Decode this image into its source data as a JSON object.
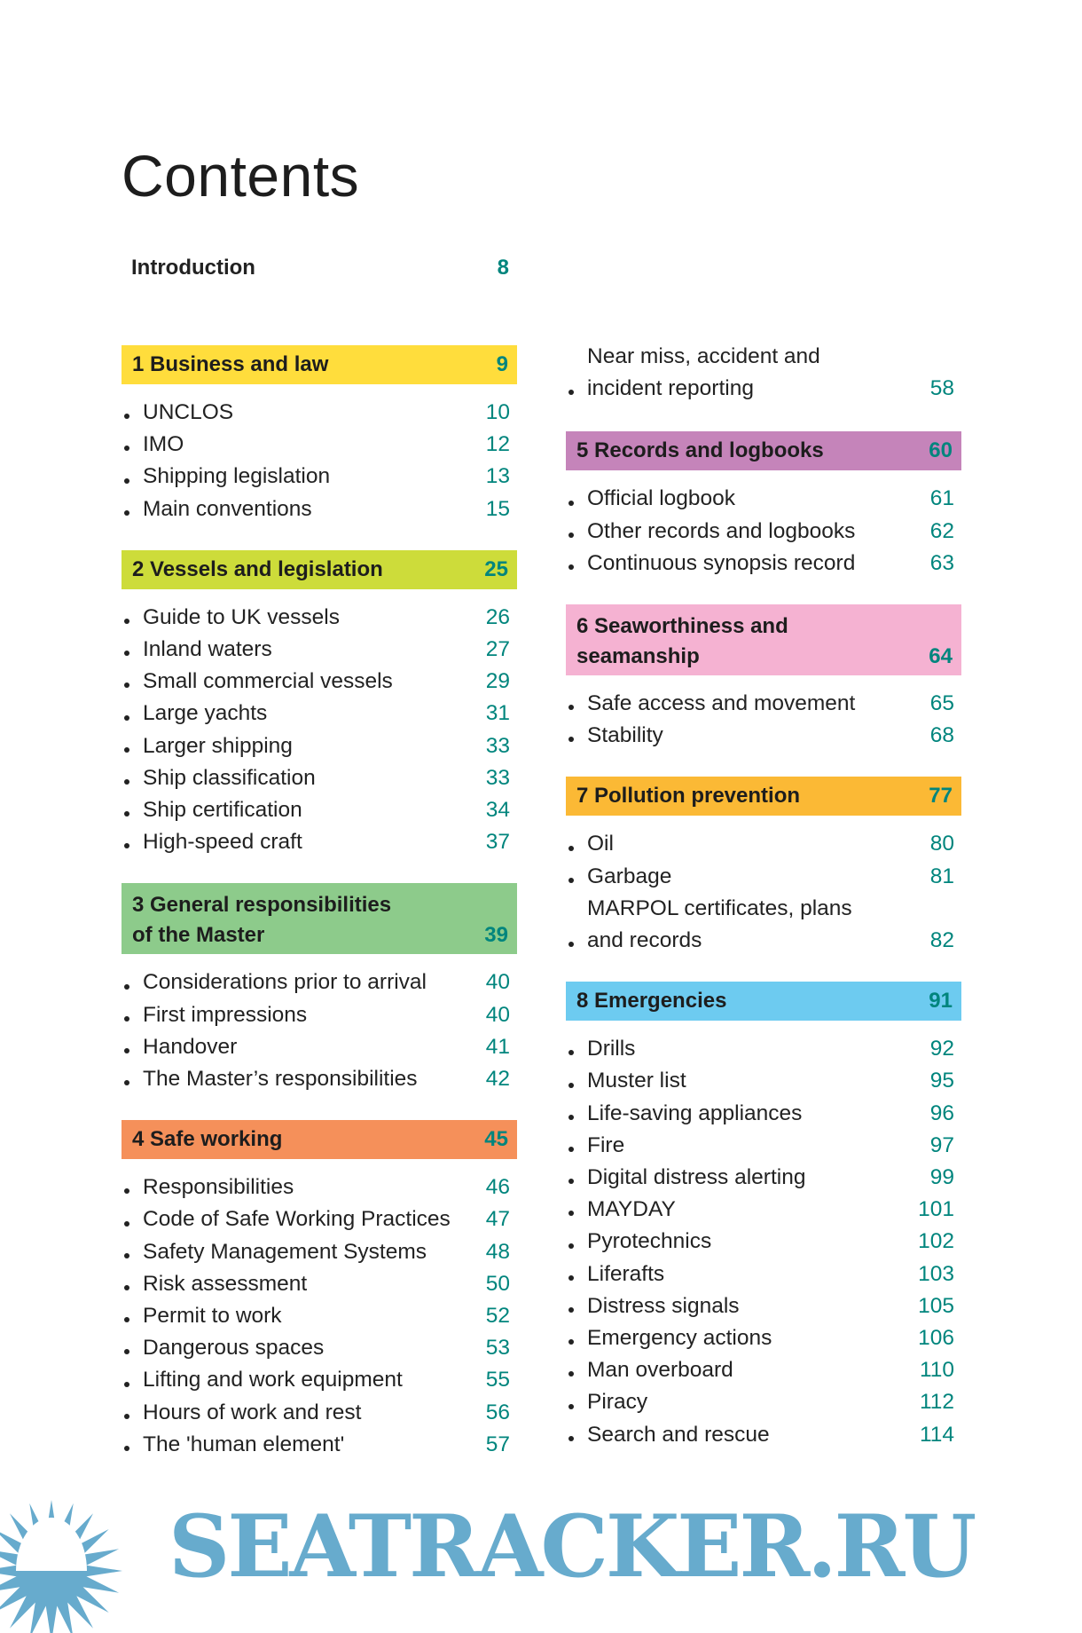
{
  "title": "Contents",
  "introduction": {
    "label": "Introduction",
    "page": "8"
  },
  "colors": {
    "page_number": "#00857d",
    "watermark": "#67abcd"
  },
  "left_column": [
    {
      "number": "1",
      "title": "Business and law",
      "page": "9",
      "color": "#ffdd3c",
      "items": [
        {
          "t": "UNCLOS",
          "p": "10"
        },
        {
          "t": "IMO",
          "p": "12"
        },
        {
          "t": "Shipping legislation",
          "p": "13"
        },
        {
          "t": "Main conventions",
          "p": "15"
        }
      ]
    },
    {
      "number": "2",
      "title": "Vessels and legislation",
      "page": "25",
      "color": "#cddc3a",
      "items": [
        {
          "t": "Guide to UK vessels",
          "p": "26"
        },
        {
          "t": "Inland waters",
          "p": "27"
        },
        {
          "t": "Small commercial vessels",
          "p": "29"
        },
        {
          "t": "Large yachts",
          "p": "31"
        },
        {
          "t": "Larger shipping",
          "p": "33"
        },
        {
          "t": "Ship classification",
          "p": "33"
        },
        {
          "t": "Ship certification",
          "p": "34"
        },
        {
          "t": "High-speed craft",
          "p": "37"
        }
      ]
    },
    {
      "number": "3",
      "title": "General responsibilities\n   of the Master",
      "page": "39",
      "color": "#8dcb8b",
      "two_line": true,
      "items": [
        {
          "t": "Considerations prior to arrival",
          "p": "40"
        },
        {
          "t": "First impressions",
          "p": "40"
        },
        {
          "t": "Handover",
          "p": "41"
        },
        {
          "t": "The Master’s responsibilities",
          "p": "42"
        }
      ]
    },
    {
      "number": "4",
      "title": "Safe working",
      "page": "45",
      "color": "#f5905a",
      "items": [
        {
          "t": "Responsibilities",
          "p": "46"
        },
        {
          "t": "Code of Safe Working Practices",
          "p": "47"
        },
        {
          "t": "Safety Management Systems",
          "p": "48"
        },
        {
          "t": "Risk assessment",
          "p": "50"
        },
        {
          "t": "Permit to work",
          "p": "52"
        },
        {
          "t": "Dangerous spaces",
          "p": "53"
        },
        {
          "t": "Lifting and work equipment",
          "p": "55"
        },
        {
          "t": "Hours of work and rest",
          "p": "56"
        },
        {
          "t": "The 'human element'",
          "p": "57"
        }
      ]
    }
  ],
  "right_column_continued": [
    {
      "t": "Near miss, accident and\nincident reporting",
      "p": "58"
    }
  ],
  "right_column": [
    {
      "number": "5",
      "title": "Records and logbooks",
      "page": "60",
      "color": "#c584ba",
      "items": [
        {
          "t": "Official logbook",
          "p": "61"
        },
        {
          "t": "Other records and logbooks",
          "p": "62"
        },
        {
          "t": "Continuous synopsis record",
          "p": "63"
        }
      ]
    },
    {
      "number": "6",
      "title": "Seaworthiness and\n   seamanship",
      "page": "64",
      "color": "#f5b2d2",
      "two_line": true,
      "items": [
        {
          "t": "Safe access and movement",
          "p": "65"
        },
        {
          "t": "Stability",
          "p": "68"
        }
      ]
    },
    {
      "number": "7",
      "title": "Pollution prevention",
      "page": "77",
      "color": "#fbb935",
      "items": [
        {
          "t": "Oil",
          "p": "80"
        },
        {
          "t": "Garbage",
          "p": "81"
        },
        {
          "t": "MARPOL certificates, plans\nand records",
          "p": "82"
        }
      ]
    },
    {
      "number": "8",
      "title": "Emergencies",
      "page": "91",
      "color": "#6dcbf0",
      "items": [
        {
          "t": "Drills",
          "p": "92"
        },
        {
          "t": "Muster list",
          "p": "95"
        },
        {
          "t": "Life-saving appliances",
          "p": "96"
        },
        {
          "t": "Fire",
          "p": "97"
        },
        {
          "t": "Digital distress alerting",
          "p": "99"
        },
        {
          "t": "MAYDAY",
          "p": "101"
        },
        {
          "t": "Pyrotechnics",
          "p": "102"
        },
        {
          "t": "Liferafts",
          "p": "103"
        },
        {
          "t": "Distress signals",
          "p": "105"
        },
        {
          "t": "Emergency actions",
          "p": "106"
        },
        {
          "t": "Man overboard",
          "p": "110"
        },
        {
          "t": "Piracy",
          "p": "112"
        },
        {
          "t": "Search and rescue",
          "p": "114"
        }
      ]
    }
  ],
  "watermark": {
    "text": "SEATRACKER.RU",
    "icon": "sun-icon"
  }
}
